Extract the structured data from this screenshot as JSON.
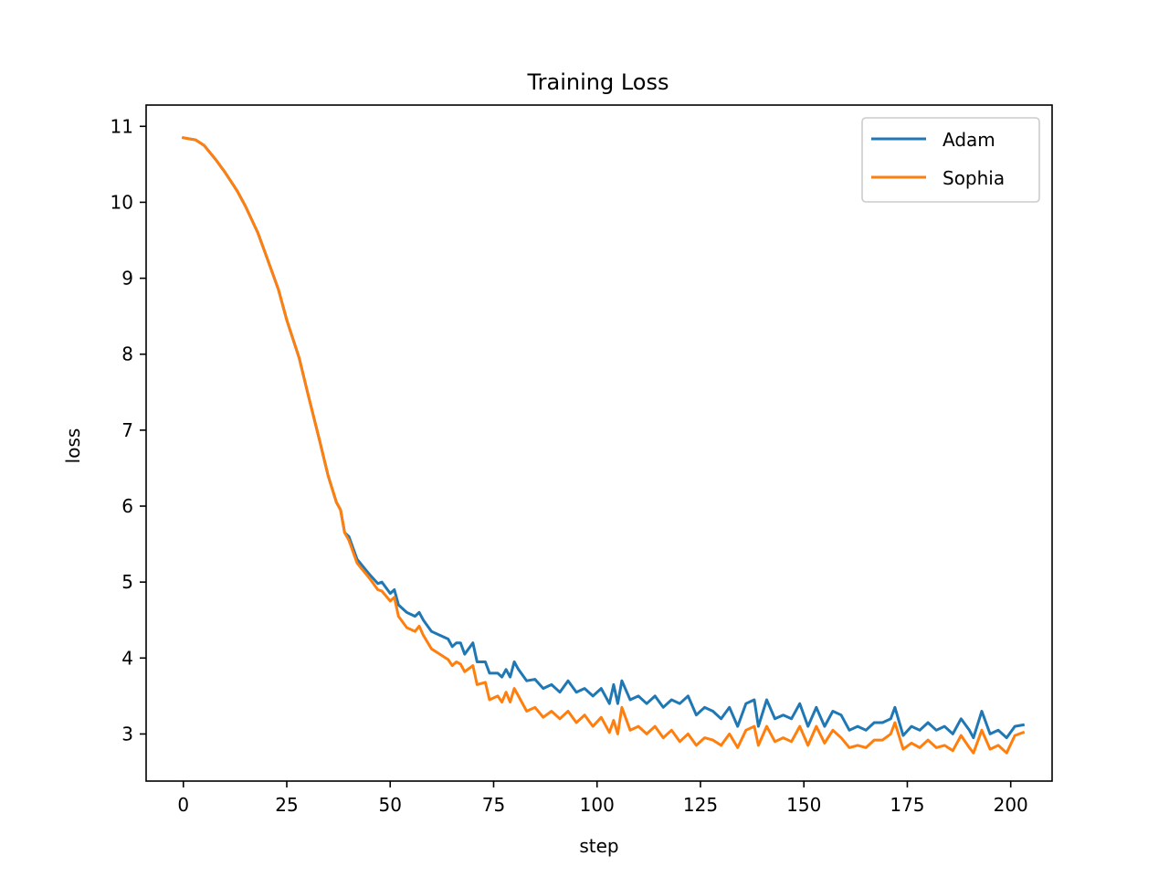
{
  "chart_data": {
    "type": "line",
    "title": "Training Loss",
    "xlabel": "step",
    "ylabel": "loss",
    "xlim": [
      -9,
      210
    ],
    "ylim": [
      2.38,
      11.28
    ],
    "xticks": [
      0,
      25,
      50,
      75,
      100,
      125,
      150,
      175,
      200
    ],
    "yticks": [
      3,
      4,
      5,
      6,
      7,
      8,
      9,
      10,
      11
    ],
    "grid": false,
    "legend_position": "top-right",
    "series": [
      {
        "name": "Adam",
        "color": "#1f77b4",
        "points": [
          [
            0,
            10.85
          ],
          [
            3,
            10.82
          ],
          [
            5,
            10.75
          ],
          [
            8,
            10.55
          ],
          [
            10,
            10.4
          ],
          [
            13,
            10.15
          ],
          [
            15,
            9.95
          ],
          [
            18,
            9.6
          ],
          [
            20,
            9.3
          ],
          [
            23,
            8.85
          ],
          [
            25,
            8.45
          ],
          [
            28,
            7.95
          ],
          [
            30,
            7.5
          ],
          [
            33,
            6.85
          ],
          [
            35,
            6.4
          ],
          [
            37,
            6.05
          ],
          [
            38,
            5.95
          ],
          [
            39,
            5.65
          ],
          [
            40,
            5.6
          ],
          [
            42,
            5.3
          ],
          [
            45,
            5.1
          ],
          [
            47,
            4.98
          ],
          [
            48,
            5.0
          ],
          [
            50,
            4.85
          ],
          [
            51,
            4.9
          ],
          [
            52,
            4.7
          ],
          [
            54,
            4.6
          ],
          [
            56,
            4.55
          ],
          [
            57,
            4.6
          ],
          [
            58,
            4.5
          ],
          [
            60,
            4.35
          ],
          [
            62,
            4.3
          ],
          [
            64,
            4.25
          ],
          [
            65,
            4.15
          ],
          [
            66,
            4.2
          ],
          [
            67,
            4.2
          ],
          [
            68,
            4.05
          ],
          [
            70,
            4.2
          ],
          [
            71,
            3.95
          ],
          [
            73,
            3.95
          ],
          [
            74,
            3.8
          ],
          [
            76,
            3.8
          ],
          [
            77,
            3.75
          ],
          [
            78,
            3.85
          ],
          [
            79,
            3.75
          ],
          [
            80,
            3.95
          ],
          [
            81,
            3.85
          ],
          [
            83,
            3.7
          ],
          [
            85,
            3.72
          ],
          [
            87,
            3.6
          ],
          [
            89,
            3.65
          ],
          [
            91,
            3.55
          ],
          [
            93,
            3.7
          ],
          [
            95,
            3.55
          ],
          [
            97,
            3.6
          ],
          [
            99,
            3.5
          ],
          [
            101,
            3.6
          ],
          [
            103,
            3.4
          ],
          [
            104,
            3.65
          ],
          [
            105,
            3.4
          ],
          [
            106,
            3.7
          ],
          [
            108,
            3.45
          ],
          [
            110,
            3.5
          ],
          [
            112,
            3.4
          ],
          [
            114,
            3.5
          ],
          [
            116,
            3.35
          ],
          [
            118,
            3.45
          ],
          [
            120,
            3.4
          ],
          [
            122,
            3.5
          ],
          [
            124,
            3.25
          ],
          [
            126,
            3.35
          ],
          [
            128,
            3.3
          ],
          [
            130,
            3.2
          ],
          [
            132,
            3.35
          ],
          [
            134,
            3.1
          ],
          [
            136,
            3.4
          ],
          [
            138,
            3.45
          ],
          [
            139,
            3.1
          ],
          [
            141,
            3.45
          ],
          [
            143,
            3.2
          ],
          [
            145,
            3.25
          ],
          [
            147,
            3.2
          ],
          [
            149,
            3.4
          ],
          [
            151,
            3.1
          ],
          [
            153,
            3.35
          ],
          [
            155,
            3.1
          ],
          [
            157,
            3.3
          ],
          [
            159,
            3.25
          ],
          [
            161,
            3.05
          ],
          [
            163,
            3.1
          ],
          [
            165,
            3.05
          ],
          [
            167,
            3.15
          ],
          [
            169,
            3.15
          ],
          [
            171,
            3.2
          ],
          [
            172,
            3.35
          ],
          [
            174,
            2.98
          ],
          [
            176,
            3.1
          ],
          [
            178,
            3.05
          ],
          [
            180,
            3.15
          ],
          [
            182,
            3.05
          ],
          [
            184,
            3.1
          ],
          [
            186,
            3.0
          ],
          [
            188,
            3.2
          ],
          [
            190,
            3.05
          ],
          [
            191,
            2.95
          ],
          [
            193,
            3.3
          ],
          [
            195,
            3.0
          ],
          [
            197,
            3.05
          ],
          [
            199,
            2.95
          ],
          [
            201,
            3.1
          ],
          [
            203,
            3.12
          ]
        ]
      },
      {
        "name": "Sophia",
        "color": "#ff7f0e",
        "points": [
          [
            0,
            10.85
          ],
          [
            3,
            10.82
          ],
          [
            5,
            10.75
          ],
          [
            8,
            10.55
          ],
          [
            10,
            10.4
          ],
          [
            13,
            10.15
          ],
          [
            15,
            9.95
          ],
          [
            18,
            9.6
          ],
          [
            20,
            9.3
          ],
          [
            23,
            8.85
          ],
          [
            25,
            8.45
          ],
          [
            28,
            7.95
          ],
          [
            30,
            7.5
          ],
          [
            33,
            6.85
          ],
          [
            35,
            6.4
          ],
          [
            37,
            6.05
          ],
          [
            38,
            5.95
          ],
          [
            39,
            5.65
          ],
          [
            40,
            5.55
          ],
          [
            42,
            5.25
          ],
          [
            45,
            5.05
          ],
          [
            47,
            4.9
          ],
          [
            48,
            4.88
          ],
          [
            50,
            4.75
          ],
          [
            51,
            4.8
          ],
          [
            52,
            4.55
          ],
          [
            54,
            4.4
          ],
          [
            56,
            4.35
          ],
          [
            57,
            4.42
          ],
          [
            58,
            4.3
          ],
          [
            60,
            4.12
          ],
          [
            62,
            4.05
          ],
          [
            64,
            3.98
          ],
          [
            65,
            3.9
          ],
          [
            66,
            3.95
          ],
          [
            67,
            3.92
          ],
          [
            68,
            3.82
          ],
          [
            70,
            3.9
          ],
          [
            71,
            3.65
          ],
          [
            73,
            3.68
          ],
          [
            74,
            3.45
          ],
          [
            76,
            3.5
          ],
          [
            77,
            3.42
          ],
          [
            78,
            3.55
          ],
          [
            79,
            3.42
          ],
          [
            80,
            3.6
          ],
          [
            81,
            3.5
          ],
          [
            83,
            3.3
          ],
          [
            85,
            3.35
          ],
          [
            87,
            3.22
          ],
          [
            89,
            3.3
          ],
          [
            91,
            3.2
          ],
          [
            93,
            3.3
          ],
          [
            95,
            3.15
          ],
          [
            97,
            3.25
          ],
          [
            99,
            3.1
          ],
          [
            101,
            3.22
          ],
          [
            103,
            3.02
          ],
          [
            104,
            3.18
          ],
          [
            105,
            3.0
          ],
          [
            106,
            3.35
          ],
          [
            108,
            3.05
          ],
          [
            110,
            3.1
          ],
          [
            112,
            3.0
          ],
          [
            114,
            3.1
          ],
          [
            116,
            2.95
          ],
          [
            118,
            3.05
          ],
          [
            120,
            2.9
          ],
          [
            122,
            3.0
          ],
          [
            124,
            2.85
          ],
          [
            126,
            2.95
          ],
          [
            128,
            2.92
          ],
          [
            130,
            2.85
          ],
          [
            132,
            3.0
          ],
          [
            134,
            2.82
          ],
          [
            136,
            3.05
          ],
          [
            138,
            3.1
          ],
          [
            139,
            2.85
          ],
          [
            141,
            3.1
          ],
          [
            143,
            2.9
          ],
          [
            145,
            2.95
          ],
          [
            147,
            2.9
          ],
          [
            149,
            3.1
          ],
          [
            151,
            2.85
          ],
          [
            153,
            3.1
          ],
          [
            155,
            2.88
          ],
          [
            157,
            3.05
          ],
          [
            159,
            2.95
          ],
          [
            161,
            2.82
          ],
          [
            163,
            2.85
          ],
          [
            165,
            2.82
          ],
          [
            167,
            2.92
          ],
          [
            169,
            2.92
          ],
          [
            171,
            3.0
          ],
          [
            172,
            3.15
          ],
          [
            174,
            2.8
          ],
          [
            176,
            2.88
          ],
          [
            178,
            2.82
          ],
          [
            180,
            2.92
          ],
          [
            182,
            2.82
          ],
          [
            184,
            2.85
          ],
          [
            186,
            2.78
          ],
          [
            188,
            2.98
          ],
          [
            190,
            2.82
          ],
          [
            191,
            2.75
          ],
          [
            193,
            3.05
          ],
          [
            195,
            2.8
          ],
          [
            197,
            2.85
          ],
          [
            199,
            2.75
          ],
          [
            201,
            2.98
          ],
          [
            203,
            3.02
          ]
        ]
      }
    ]
  }
}
